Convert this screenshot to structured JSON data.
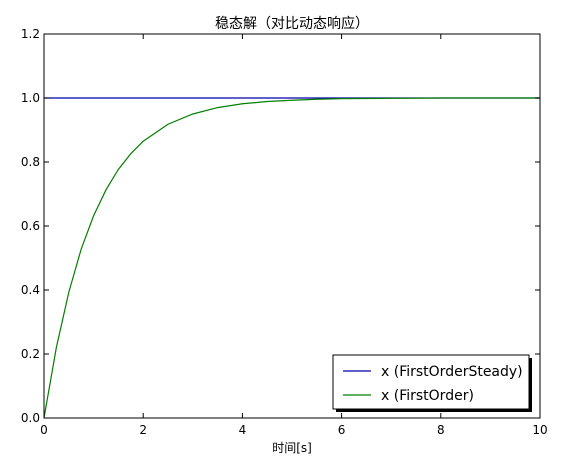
{
  "chart_data": {
    "type": "line",
    "title": "稳态解（对比动态响应）",
    "xlabel": "时间[s]",
    "ylabel": "",
    "xlim": [
      0,
      10
    ],
    "ylim": [
      0.0,
      1.2
    ],
    "x_ticks": [
      "0",
      "2",
      "4",
      "6",
      "8",
      "10"
    ],
    "y_ticks": [
      "0.0",
      "0.2",
      "0.4",
      "0.6",
      "0.8",
      "1.0",
      "1.2"
    ],
    "grid": false,
    "legend_position": "lower-right",
    "series": [
      {
        "name": "x (FirstOrderSteady)",
        "color": "#0000aa",
        "x": [
          0,
          10
        ],
        "y": [
          1.0,
          1.0
        ]
      },
      {
        "name": "x (FirstOrder)",
        "color": "#008000",
        "x": [
          0,
          0.25,
          0.5,
          0.75,
          1.0,
          1.25,
          1.5,
          1.75,
          2.0,
          2.5,
          3.0,
          3.5,
          4.0,
          4.5,
          5.0,
          5.5,
          6.0,
          7.0,
          8.0,
          9.0,
          10.0
        ],
        "y": [
          0.0,
          0.221,
          0.393,
          0.528,
          0.632,
          0.713,
          0.777,
          0.826,
          0.865,
          0.918,
          0.95,
          0.97,
          0.982,
          0.989,
          0.993,
          0.996,
          0.998,
          0.999,
          1.0,
          1.0,
          1.0
        ]
      }
    ]
  }
}
